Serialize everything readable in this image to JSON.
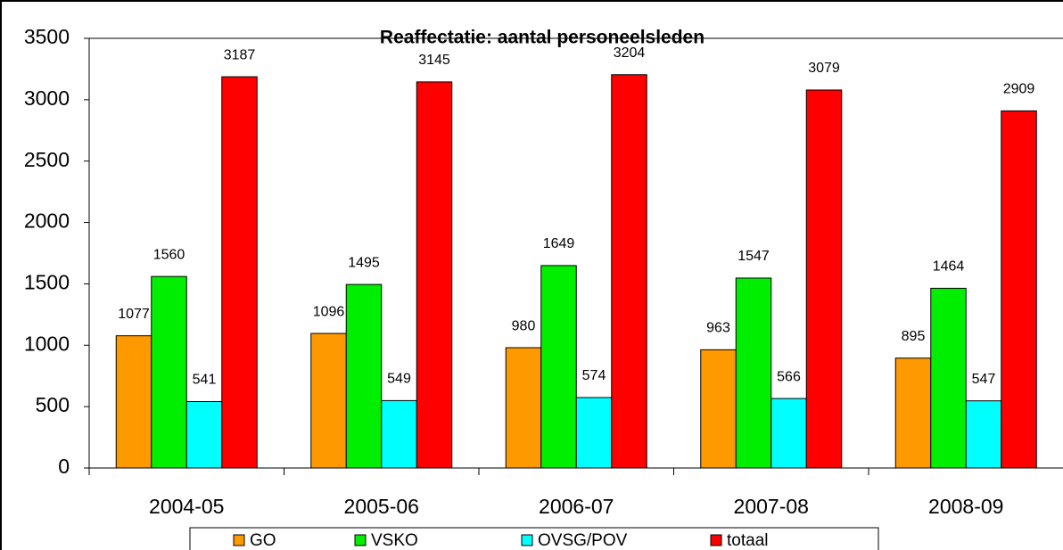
{
  "chart_data": {
    "type": "bar",
    "title": "Reaffectatie: aantal personeelsleden",
    "categories": [
      "2004-05",
      "2005-06",
      "2006-07",
      "2007-08",
      "2008-09"
    ],
    "series": [
      {
        "name": "GO",
        "color": "#ff9900",
        "values": [
          1077,
          1096,
          980,
          963,
          895
        ]
      },
      {
        "name": "VSKO",
        "color": "#00ee00",
        "values": [
          1560,
          1495,
          1649,
          1547,
          1464
        ]
      },
      {
        "name": "OVSG/POV",
        "color": "#00ffff",
        "values": [
          541,
          549,
          574,
          566,
          547
        ]
      },
      {
        "name": "totaal",
        "color": "#ff0000",
        "values": [
          3187,
          3145,
          3204,
          3079,
          2909
        ]
      }
    ],
    "ylim": [
      0,
      3500
    ],
    "yticks": [
      0,
      500,
      1000,
      1500,
      2000,
      2500,
      3000,
      3500
    ],
    "grid": false,
    "legend": "bottom"
  }
}
